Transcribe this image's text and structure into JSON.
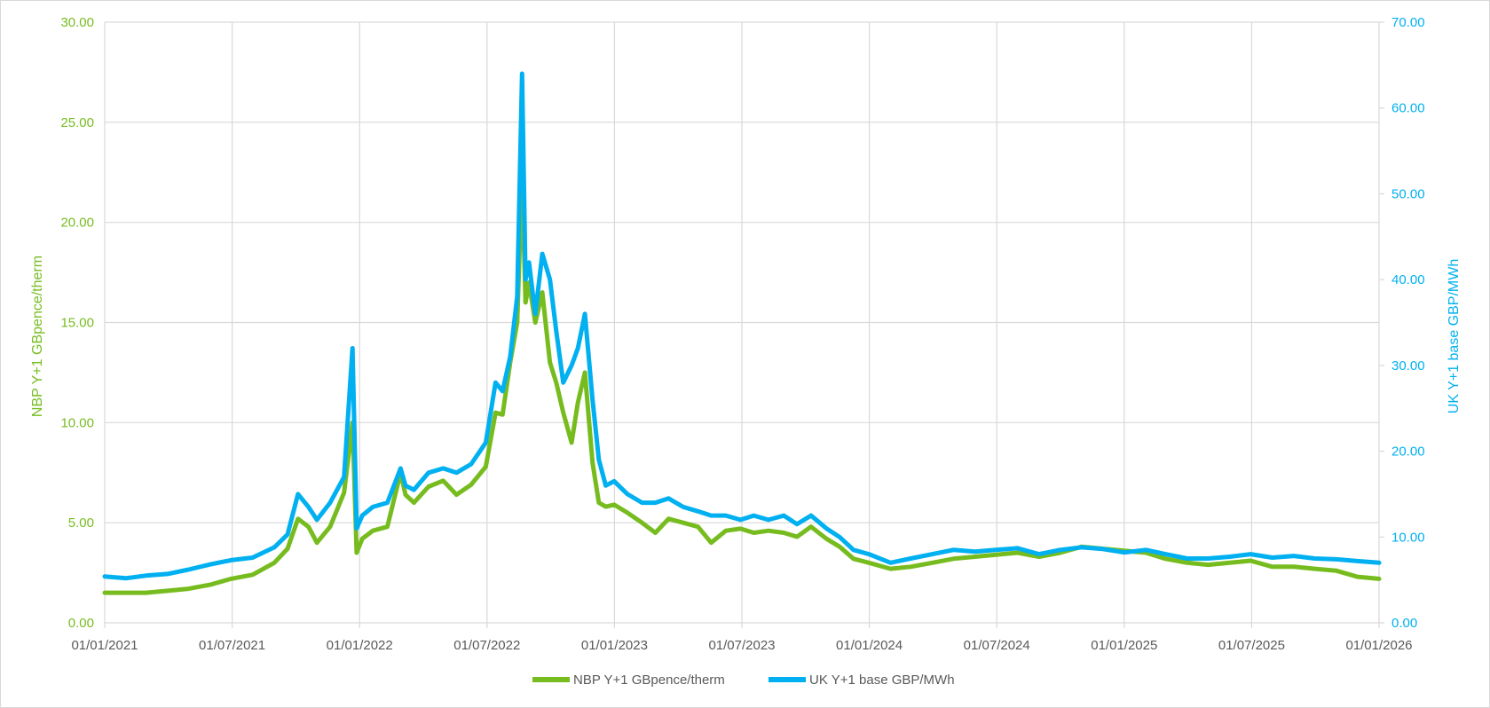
{
  "colors": {
    "nbp": "#77BC1F",
    "uk": "#00B0F0",
    "grid": "#d9d9d9",
    "text": "#595959"
  },
  "chart_data": {
    "type": "line",
    "title": "",
    "xlabel": "",
    "ylabel": "NBP Y+1 GBpence/therm",
    "y2label": "UK Y+1 base GBP/MWh",
    "xlim": [
      "2021-01-01",
      "2026-01-01"
    ],
    "ylim": [
      0,
      30
    ],
    "y2lim": [
      0,
      70
    ],
    "x_ticks": [
      "01/01/2021",
      "01/07/2021",
      "01/01/2022",
      "01/07/2022",
      "01/01/2023",
      "01/07/2023",
      "01/01/2024",
      "01/07/2024",
      "01/01/2025",
      "01/07/2025",
      "01/01/2026"
    ],
    "y_ticks": [
      "0.00",
      "5.00",
      "10.00",
      "15.00",
      "20.00",
      "25.00",
      "30.00"
    ],
    "y2_ticks": [
      "0.00",
      "10.00",
      "20.00",
      "30.00",
      "40.00",
      "50.00",
      "60.00",
      "70.00"
    ],
    "grid": true,
    "legend_position": "bottom",
    "series": [
      {
        "name": "NBP Y+1 GBpence/therm",
        "axis": "left",
        "x": [
          "2021-01-01",
          "2021-02-01",
          "2021-03-01",
          "2021-04-01",
          "2021-05-01",
          "2021-06-01",
          "2021-07-01",
          "2021-08-01",
          "2021-09-01",
          "2021-09-20",
          "2021-10-05",
          "2021-10-20",
          "2021-11-01",
          "2021-11-20",
          "2021-12-10",
          "2021-12-22",
          "2021-12-28",
          "2022-01-05",
          "2022-01-20",
          "2022-02-10",
          "2022-03-01",
          "2022-03-08",
          "2022-03-20",
          "2022-04-10",
          "2022-05-01",
          "2022-05-20",
          "2022-06-10",
          "2022-07-01",
          "2022-07-15",
          "2022-07-25",
          "2022-08-05",
          "2022-08-15",
          "2022-08-22",
          "2022-08-27",
          "2022-09-01",
          "2022-09-10",
          "2022-09-20",
          "2022-10-01",
          "2022-10-10",
          "2022-10-20",
          "2022-11-01",
          "2022-11-10",
          "2022-11-20",
          "2022-12-01",
          "2022-12-10",
          "2022-12-20",
          "2023-01-01",
          "2023-01-20",
          "2023-02-10",
          "2023-03-01",
          "2023-03-20",
          "2023-04-10",
          "2023-05-01",
          "2023-05-20",
          "2023-06-10",
          "2023-07-01",
          "2023-07-20",
          "2023-08-10",
          "2023-09-01",
          "2023-09-20",
          "2023-10-10",
          "2023-11-01",
          "2023-11-20",
          "2023-12-10",
          "2024-01-01",
          "2024-02-01",
          "2024-03-01",
          "2024-04-01",
          "2024-05-01",
          "2024-06-01",
          "2024-07-01",
          "2024-08-01",
          "2024-09-01",
          "2024-10-01",
          "2024-11-01",
          "2024-12-01",
          "2025-01-01",
          "2025-02-01",
          "2025-03-01",
          "2025-04-01",
          "2025-05-01",
          "2025-06-01",
          "2025-07-01",
          "2025-08-01",
          "2025-09-01",
          "2025-10-01",
          "2025-11-01",
          "2025-12-01",
          "2026-01-01"
        ],
        "values": [
          1.5,
          1.5,
          1.5,
          1.6,
          1.7,
          1.9,
          2.2,
          2.4,
          3.0,
          3.7,
          5.2,
          4.8,
          4.0,
          4.8,
          6.5,
          10.0,
          3.5,
          4.2,
          4.6,
          4.8,
          7.5,
          6.4,
          6.0,
          6.8,
          7.1,
          6.4,
          6.9,
          7.8,
          10.5,
          10.4,
          13.0,
          15.0,
          22.3,
          16.0,
          17.0,
          15.0,
          16.5,
          13.0,
          12.0,
          10.5,
          9.0,
          11.0,
          12.5,
          8.0,
          6.0,
          5.8,
          5.9,
          5.5,
          5.0,
          4.5,
          5.2,
          5.0,
          4.8,
          4.0,
          4.6,
          4.7,
          4.5,
          4.6,
          4.5,
          4.3,
          4.8,
          4.2,
          3.8,
          3.2,
          3.0,
          2.7,
          2.8,
          3.0,
          3.2,
          3.3,
          3.4,
          3.5,
          3.3,
          3.5,
          3.8,
          3.7,
          3.6,
          3.5,
          3.2,
          3.0,
          2.9,
          3.0,
          3.1,
          2.8,
          2.8,
          2.7,
          2.6,
          2.3,
          2.2
        ]
      },
      {
        "name": "UK Y+1 base GBP/MWh",
        "axis": "right",
        "x": [
          "2021-01-01",
          "2021-02-01",
          "2021-03-01",
          "2021-04-01",
          "2021-05-01",
          "2021-06-01",
          "2021-07-01",
          "2021-08-01",
          "2021-09-01",
          "2021-09-20",
          "2021-10-05",
          "2021-10-20",
          "2021-11-01",
          "2021-11-20",
          "2021-12-10",
          "2021-12-22",
          "2021-12-28",
          "2022-01-05",
          "2022-01-20",
          "2022-02-10",
          "2022-03-01",
          "2022-03-08",
          "2022-03-20",
          "2022-04-10",
          "2022-05-01",
          "2022-05-20",
          "2022-06-10",
          "2022-07-01",
          "2022-07-15",
          "2022-07-25",
          "2022-08-05",
          "2022-08-15",
          "2022-08-22",
          "2022-08-27",
          "2022-09-01",
          "2022-09-10",
          "2022-09-20",
          "2022-10-01",
          "2022-10-10",
          "2022-10-20",
          "2022-11-01",
          "2022-11-10",
          "2022-11-20",
          "2022-12-01",
          "2022-12-10",
          "2022-12-20",
          "2023-01-01",
          "2023-01-20",
          "2023-02-10",
          "2023-03-01",
          "2023-03-20",
          "2023-04-10",
          "2023-05-01",
          "2023-05-20",
          "2023-06-10",
          "2023-07-01",
          "2023-07-20",
          "2023-08-10",
          "2023-09-01",
          "2023-09-20",
          "2023-10-10",
          "2023-11-01",
          "2023-11-20",
          "2023-12-10",
          "2024-01-01",
          "2024-02-01",
          "2024-03-01",
          "2024-04-01",
          "2024-05-01",
          "2024-06-01",
          "2024-07-01",
          "2024-08-01",
          "2024-09-01",
          "2024-10-01",
          "2024-11-01",
          "2024-12-01",
          "2025-01-01",
          "2025-02-01",
          "2025-03-01",
          "2025-04-01",
          "2025-05-01",
          "2025-06-01",
          "2025-07-01",
          "2025-08-01",
          "2025-09-01",
          "2025-10-01",
          "2025-11-01",
          "2025-12-01",
          "2026-01-01"
        ],
        "values": [
          5.4,
          5.2,
          5.5,
          5.7,
          6.2,
          6.8,
          7.3,
          7.6,
          8.8,
          10.3,
          15.0,
          13.5,
          12.0,
          14.0,
          17.0,
          32.0,
          11.0,
          12.5,
          13.5,
          14.0,
          18.0,
          16.0,
          15.5,
          17.5,
          18.0,
          17.5,
          18.5,
          21.0,
          28.0,
          27.0,
          31.0,
          38.0,
          64.0,
          40.0,
          42.0,
          36.0,
          43.0,
          40.0,
          34.0,
          28.0,
          30.0,
          32.0,
          36.0,
          26.0,
          19.0,
          16.0,
          16.5,
          15.0,
          14.0,
          14.0,
          14.5,
          13.5,
          13.0,
          12.5,
          12.5,
          12.0,
          12.5,
          12.0,
          12.5,
          11.5,
          12.5,
          11.0,
          10.0,
          8.5,
          8.0,
          7.0,
          7.5,
          8.0,
          8.5,
          8.3,
          8.5,
          8.7,
          8.0,
          8.5,
          8.8,
          8.6,
          8.2,
          8.5,
          8.0,
          7.5,
          7.5,
          7.7,
          8.0,
          7.6,
          7.8,
          7.5,
          7.4,
          7.2,
          7.0
        ]
      }
    ]
  }
}
